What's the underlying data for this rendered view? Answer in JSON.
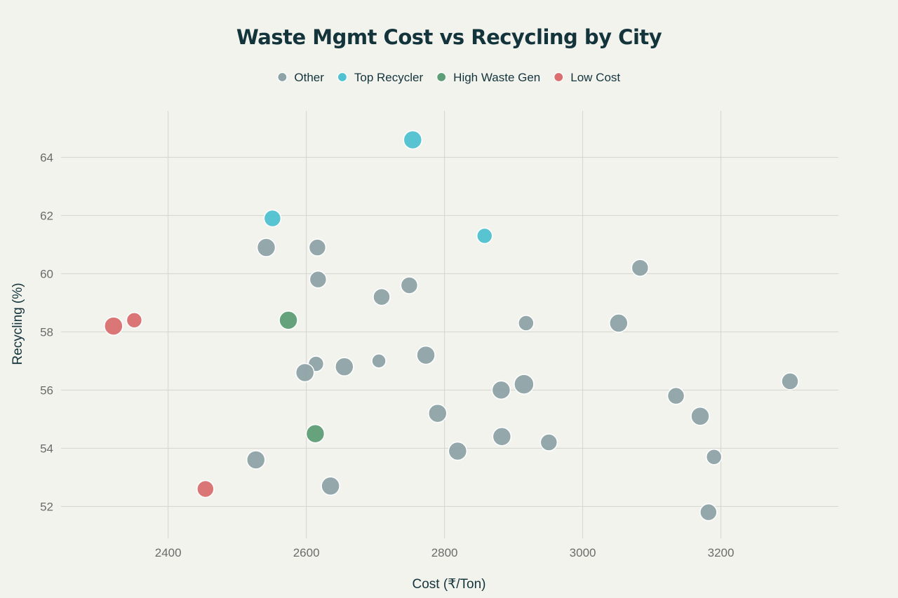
{
  "chart_data": {
    "type": "scatter",
    "title": "Waste Mgmt Cost vs Recycling by City",
    "xlabel": "Cost (₹/Ton)",
    "ylabel": "Recycling (%)",
    "xlim": [
      2245,
      3370
    ],
    "ylim": [
      50.9,
      65.6
    ],
    "xticks": [
      2400,
      2600,
      2800,
      3000,
      3200
    ],
    "yticks": [
      52,
      54,
      56,
      58,
      60,
      62,
      64
    ],
    "grid": true,
    "legend_position": "top-center",
    "colors": {
      "Other": "#8ea3a7",
      "Top Recycler": "#4fc1d0",
      "High Waste Gen": "#5e9e76",
      "Low Cost": "#d96f70"
    },
    "series": [
      {
        "name": "Other",
        "points": [
          {
            "x": 2542,
            "y": 60.9,
            "size": 13
          },
          {
            "x": 2616,
            "y": 60.9,
            "size": 12
          },
          {
            "x": 2617,
            "y": 59.8,
            "size": 12
          },
          {
            "x": 2709,
            "y": 59.2,
            "size": 12
          },
          {
            "x": 2749,
            "y": 59.6,
            "size": 12
          },
          {
            "x": 2614,
            "y": 56.9,
            "size": 11
          },
          {
            "x": 2598,
            "y": 56.6,
            "size": 13
          },
          {
            "x": 2655,
            "y": 56.8,
            "size": 13
          },
          {
            "x": 2705,
            "y": 57.0,
            "size": 10
          },
          {
            "x": 2773,
            "y": 57.2,
            "size": 13
          },
          {
            "x": 2918,
            "y": 58.3,
            "size": 11
          },
          {
            "x": 3052,
            "y": 58.3,
            "size": 13
          },
          {
            "x": 3083,
            "y": 60.2,
            "size": 12
          },
          {
            "x": 2882,
            "y": 56.0,
            "size": 13
          },
          {
            "x": 2915,
            "y": 56.2,
            "size": 14
          },
          {
            "x": 2790,
            "y": 55.2,
            "size": 13
          },
          {
            "x": 2819,
            "y": 53.9,
            "size": 13
          },
          {
            "x": 2883,
            "y": 54.4,
            "size": 13
          },
          {
            "x": 2951,
            "y": 54.2,
            "size": 12
          },
          {
            "x": 2527,
            "y": 53.6,
            "size": 13
          },
          {
            "x": 2635,
            "y": 52.7,
            "size": 13
          },
          {
            "x": 3135,
            "y": 55.8,
            "size": 12
          },
          {
            "x": 3170,
            "y": 55.1,
            "size": 13
          },
          {
            "x": 3190,
            "y": 53.7,
            "size": 11
          },
          {
            "x": 3182,
            "y": 51.8,
            "size": 12
          },
          {
            "x": 3300,
            "y": 56.3,
            "size": 12
          }
        ]
      },
      {
        "name": "Top Recycler",
        "points": [
          {
            "x": 2754,
            "y": 64.6,
            "size": 13
          },
          {
            "x": 2551,
            "y": 61.9,
            "size": 12
          },
          {
            "x": 2858,
            "y": 61.3,
            "size": 11
          }
        ]
      },
      {
        "name": "High Waste Gen",
        "points": [
          {
            "x": 2574,
            "y": 58.4,
            "size": 13
          },
          {
            "x": 2613,
            "y": 54.5,
            "size": 13
          }
        ]
      },
      {
        "name": "Low Cost",
        "points": [
          {
            "x": 2321,
            "y": 58.2,
            "size": 13
          },
          {
            "x": 2351,
            "y": 58.4,
            "size": 11
          },
          {
            "x": 2454,
            "y": 52.6,
            "size": 12
          }
        ]
      }
    ]
  }
}
